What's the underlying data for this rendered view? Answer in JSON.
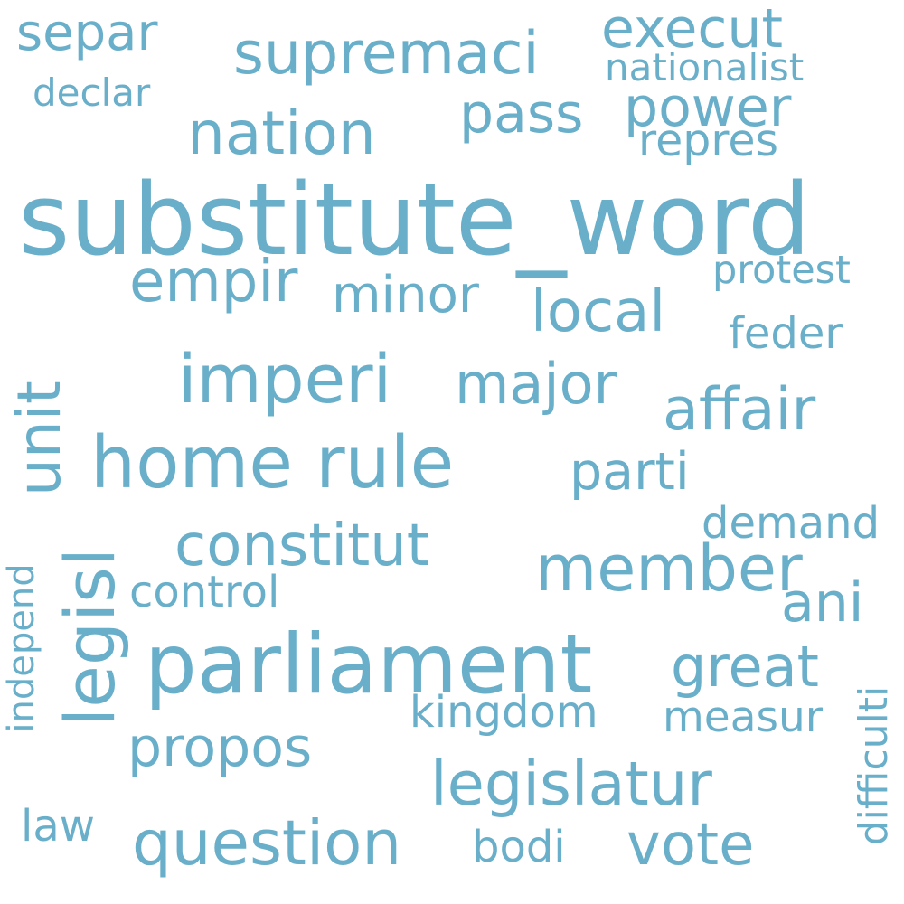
{
  "cloud": {
    "color": "#6aafca",
    "words": [
      {
        "text": "substitute_word",
        "weight": 100,
        "orientation": "horizontal"
      },
      {
        "text": "parliament",
        "weight": 85,
        "orientation": "horizontal"
      },
      {
        "text": "home rule",
        "weight": 78,
        "orientation": "horizontal"
      },
      {
        "text": "legisl",
        "weight": 76,
        "orientation": "vertical"
      },
      {
        "text": "imperi",
        "weight": 74,
        "orientation": "horizontal"
      },
      {
        "text": "member",
        "weight": 72,
        "orientation": "horizontal"
      },
      {
        "text": "question",
        "weight": 70,
        "orientation": "horizontal"
      },
      {
        "text": "legislatur",
        "weight": 70,
        "orientation": "horizontal"
      },
      {
        "text": "nation",
        "weight": 68,
        "orientation": "horizontal"
      },
      {
        "text": "unit",
        "weight": 66,
        "orientation": "vertical"
      },
      {
        "text": "supremaci",
        "weight": 65,
        "orientation": "horizontal"
      },
      {
        "text": "affair",
        "weight": 65,
        "orientation": "horizontal"
      },
      {
        "text": "constitut",
        "weight": 64,
        "orientation": "horizontal"
      },
      {
        "text": "vote",
        "weight": 64,
        "orientation": "horizontal"
      },
      {
        "text": "empir",
        "weight": 63,
        "orientation": "horizontal"
      },
      {
        "text": "local",
        "weight": 63,
        "orientation": "horizontal"
      },
      {
        "text": "major",
        "weight": 62,
        "orientation": "horizontal"
      },
      {
        "text": "great",
        "weight": 62,
        "orientation": "horizontal"
      },
      {
        "text": "power",
        "weight": 61,
        "orientation": "horizontal"
      },
      {
        "text": "pass",
        "weight": 61,
        "orientation": "horizontal"
      },
      {
        "text": "ani",
        "weight": 61,
        "orientation": "horizontal"
      },
      {
        "text": "execut",
        "weight": 60,
        "orientation": "horizontal"
      },
      {
        "text": "propos",
        "weight": 60,
        "orientation": "horizontal"
      },
      {
        "text": "separ",
        "weight": 58,
        "orientation": "horizontal"
      },
      {
        "text": "parti",
        "weight": 58,
        "orientation": "horizontal"
      },
      {
        "text": "minor",
        "weight": 56,
        "orientation": "horizontal"
      },
      {
        "text": "kingdom",
        "weight": 50,
        "orientation": "horizontal"
      },
      {
        "text": "repres",
        "weight": 49,
        "orientation": "horizontal"
      },
      {
        "text": "feder",
        "weight": 49,
        "orientation": "horizontal"
      },
      {
        "text": "bodi",
        "weight": 49,
        "orientation": "horizontal"
      },
      {
        "text": "control",
        "weight": 49,
        "orientation": "horizontal"
      },
      {
        "text": "demand",
        "weight": 48,
        "orientation": "horizontal"
      },
      {
        "text": "law",
        "weight": 48,
        "orientation": "horizontal"
      },
      {
        "text": "measur",
        "weight": 47,
        "orientation": "horizontal"
      },
      {
        "text": "difficulti",
        "weight": 45,
        "orientation": "vertical"
      },
      {
        "text": "protest",
        "weight": 44,
        "orientation": "horizontal"
      },
      {
        "text": "nationalist",
        "weight": 44,
        "orientation": "horizontal"
      },
      {
        "text": "declar",
        "weight": 42,
        "orientation": "horizontal"
      },
      {
        "text": "independ",
        "weight": 40,
        "orientation": "vertical"
      }
    ]
  }
}
